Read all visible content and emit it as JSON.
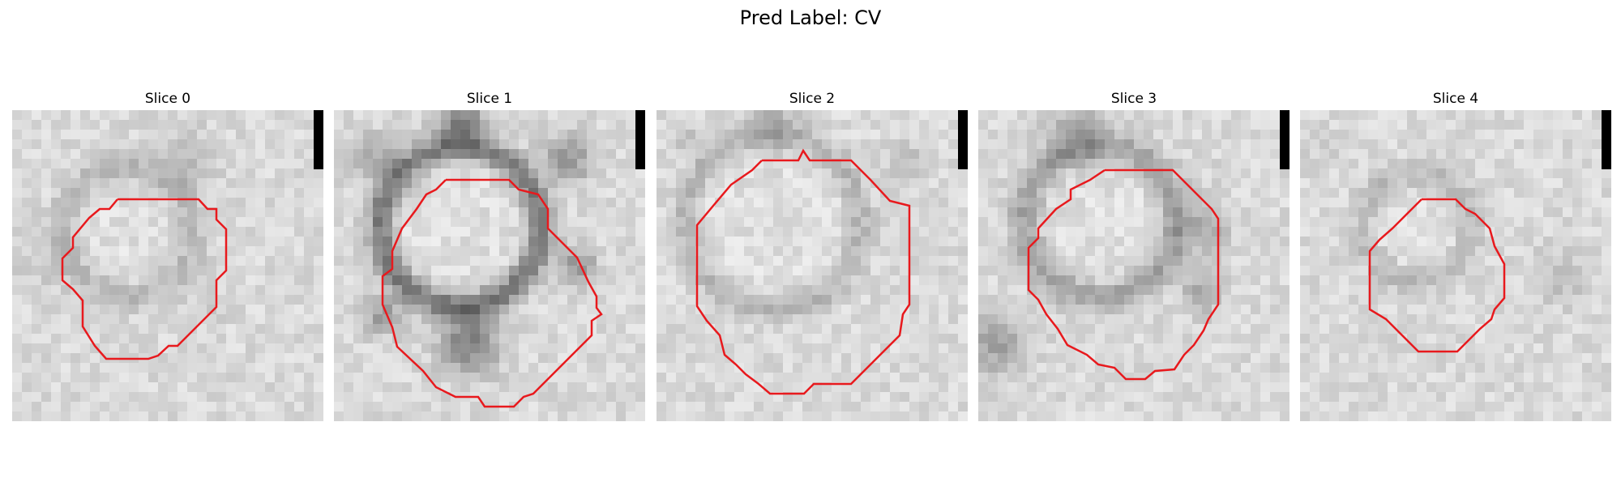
{
  "figure": {
    "title": "Pred Label: CV"
  },
  "panels": [
    {
      "title": "Slice 0",
      "scale_bar": true,
      "contour_color": "#e8191d",
      "appearance": "faint gray ring, light interior"
    },
    {
      "title": "Slice 1",
      "scale_bar": true,
      "contour_color": "#e8191d",
      "appearance": "dark membrane ring with radiating dark blobs"
    },
    {
      "title": "Slice 2",
      "scale_bar": true,
      "contour_color": "#e8191d",
      "appearance": "large light interior, faint ring"
    },
    {
      "title": "Slice 3",
      "scale_bar": true,
      "contour_color": "#e8191d",
      "appearance": "medium ring, darker right side"
    },
    {
      "title": "Slice 4",
      "scale_bar": true,
      "contour_color": "#e8191d",
      "appearance": "small faint circle"
    }
  ],
  "colors": {
    "background": "#ffffff",
    "contour": "#e8191d",
    "scale_bar": "#000000"
  }
}
